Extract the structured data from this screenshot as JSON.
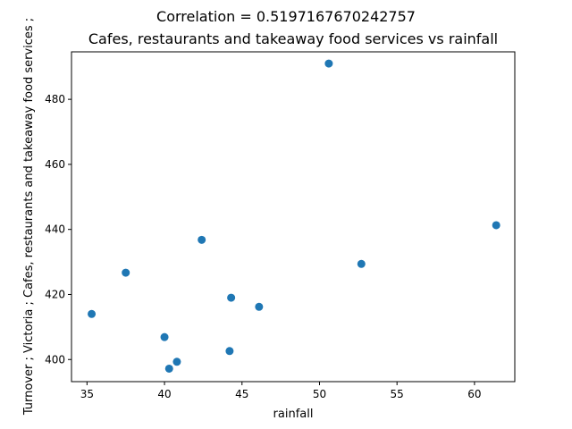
{
  "chart_data": {
    "type": "scatter",
    "suptitle": "Correlation = 0.5197167670242757",
    "title": "Cafes, restaurants and takeaway food services vs rainfall",
    "xlabel": "rainfall",
    "ylabel": "Turnover ;  Victoria ;  Cafes, restaurants and takeaway food services ;",
    "xlim": [
      34.0,
      62.6
    ],
    "ylim": [
      393.2,
      494.6
    ],
    "xticks": [
      35,
      40,
      45,
      50,
      55,
      60
    ],
    "yticks": [
      400,
      420,
      440,
      460,
      480
    ],
    "grid": false,
    "marker_color": "#1f77b4",
    "points": [
      {
        "x": 35.3,
        "y": 414.0
      },
      {
        "x": 37.5,
        "y": 426.7
      },
      {
        "x": 40.0,
        "y": 406.9
      },
      {
        "x": 40.3,
        "y": 397.2
      },
      {
        "x": 40.8,
        "y": 399.3
      },
      {
        "x": 42.4,
        "y": 436.8
      },
      {
        "x": 44.2,
        "y": 402.6
      },
      {
        "x": 44.3,
        "y": 419.0
      },
      {
        "x": 46.1,
        "y": 416.2
      },
      {
        "x": 50.6,
        "y": 491.0
      },
      {
        "x": 52.7,
        "y": 429.4
      },
      {
        "x": 61.4,
        "y": 441.3
      }
    ]
  }
}
